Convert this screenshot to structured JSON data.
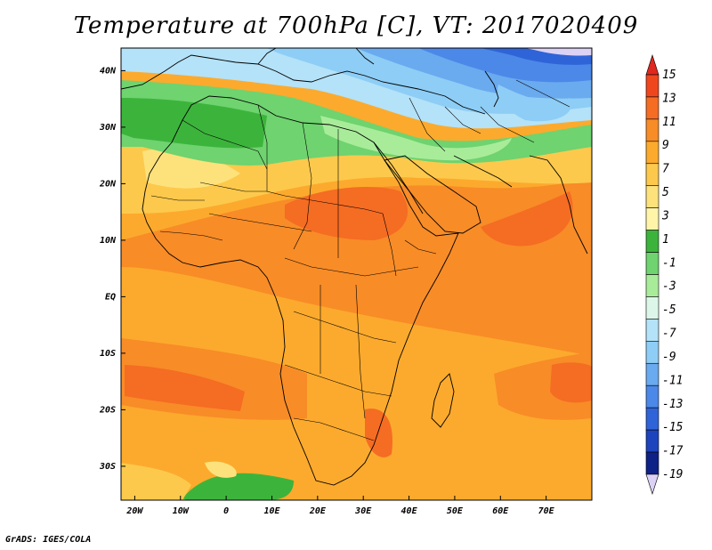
{
  "title": "Temperature at 700hPa [C], VT: 2017020409",
  "footer": "GrADS: IGES/COLA",
  "map": {
    "projection": "lat-lon",
    "lon_range": [
      -23,
      80
    ],
    "lat_range": [
      -36,
      44
    ],
    "x_ticks": [
      "20W",
      "10W",
      "0",
      "10E",
      "20E",
      "30E",
      "40E",
      "50E",
      "60E",
      "70E"
    ],
    "x_tick_lons": [
      -20,
      -10,
      0,
      10,
      20,
      30,
      40,
      50,
      60,
      70
    ],
    "y_ticks": [
      "40N",
      "30N",
      "20N",
      "10N",
      "EQ",
      "10S",
      "20S",
      "30S"
    ],
    "y_tick_lats": [
      40,
      30,
      20,
      10,
      0,
      -10,
      -20,
      -30
    ],
    "coastline_color": "#000000",
    "field": "temperature",
    "units": "C"
  },
  "colorbar": {
    "labels": [
      "15",
      "13",
      "11",
      "9",
      "7",
      "5",
      "3",
      "1",
      "-1",
      "-3",
      "-5",
      "-7",
      "-9",
      "-11",
      "-13",
      "-15",
      "-17",
      "-19"
    ],
    "colors": [
      "#e0281e",
      "#f0461e",
      "#f56c23",
      "#f88c27",
      "#fcaa2d",
      "#fdc94c",
      "#fde27c",
      "#fff4a8",
      "#3cb43c",
      "#6fd36f",
      "#a8ec9a",
      "#dcf7e9",
      "#b4e2f8",
      "#8ecdf5",
      "#6aaaef",
      "#4c88e8",
      "#2f64d8",
      "#1d44bd",
      "#0e2186",
      "#dcd2f5"
    ],
    "max_arrow_color": "#e0281e",
    "min_arrow_color": "#dcd2f5"
  }
}
